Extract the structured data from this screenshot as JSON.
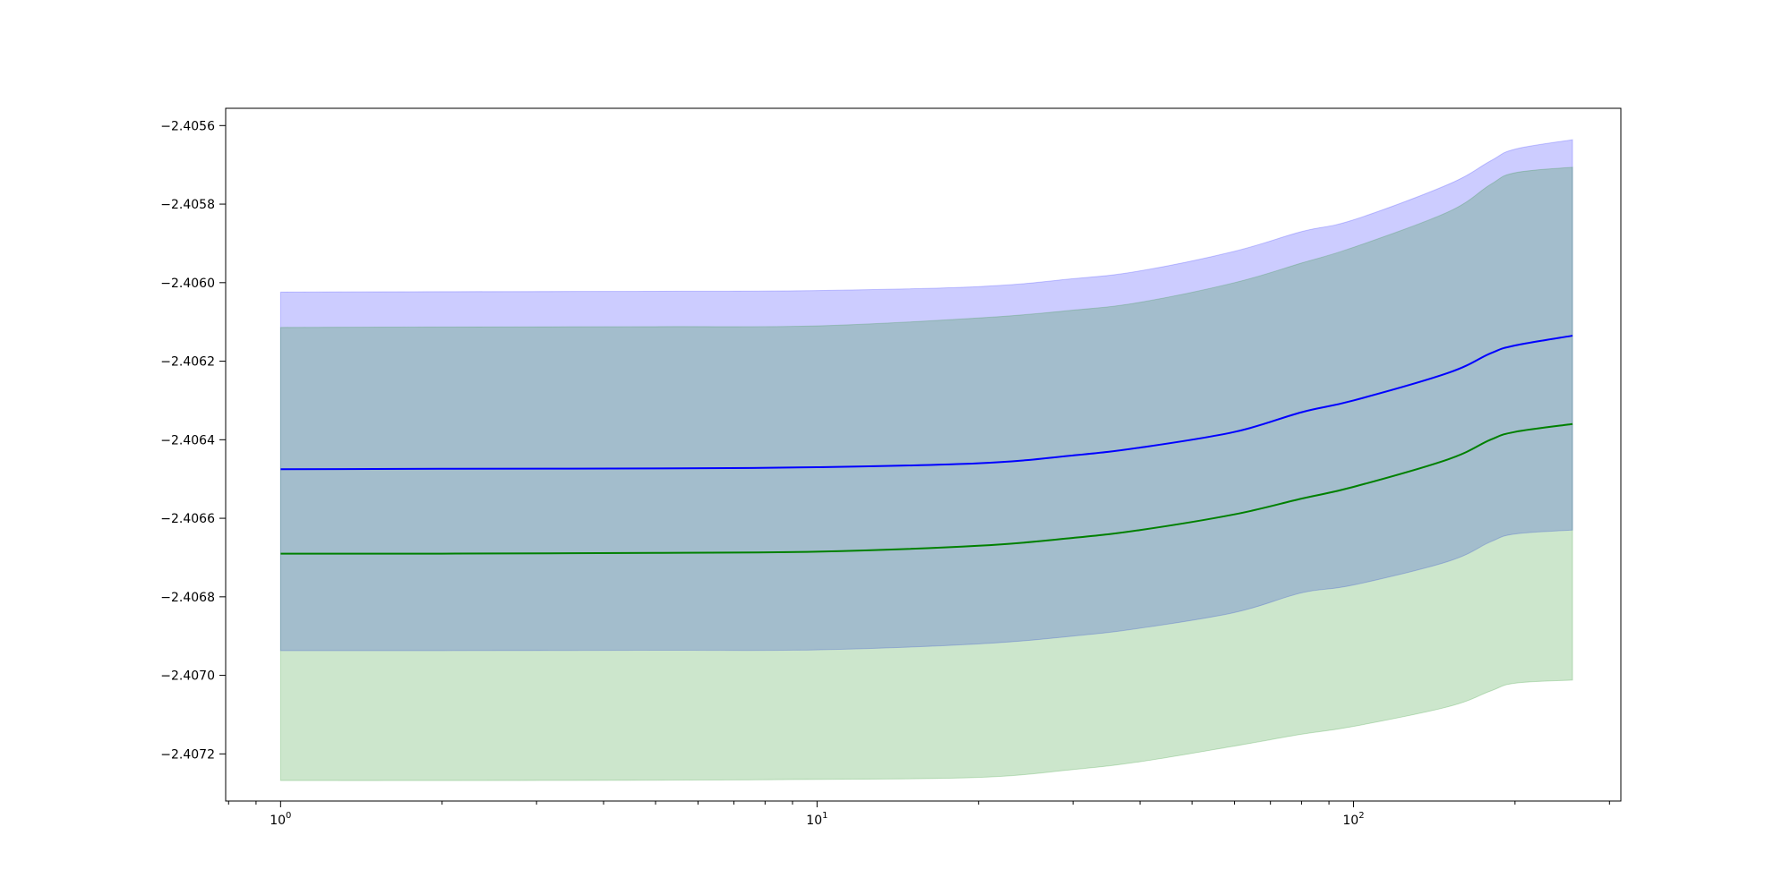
{
  "chart_data": {
    "type": "area",
    "title": "",
    "xlabel": "",
    "ylabel": "",
    "xscale": "log",
    "xlim": [
      0.79,
      315
    ],
    "ylim": [
      -2.40732,
      -2.405556
    ],
    "grid": false,
    "legend": "none",
    "x_major_ticks": [
      {
        "value": 1,
        "base": "10",
        "exp": "0"
      },
      {
        "value": 10,
        "base": "10",
        "exp": "1"
      },
      {
        "value": 100,
        "base": "10",
        "exp": "2"
      }
    ],
    "y_ticks": [
      {
        "value": -2.4056,
        "label": "−2.4056"
      },
      {
        "value": -2.4058,
        "label": "−2.4058"
      },
      {
        "value": -2.406,
        "label": "−2.4060"
      },
      {
        "value": -2.4062,
        "label": "−2.4062"
      },
      {
        "value": -2.4064,
        "label": "−2.4064"
      },
      {
        "value": -2.4066,
        "label": "−2.4066"
      },
      {
        "value": -2.4068,
        "label": "−2.4068"
      },
      {
        "value": -2.407,
        "label": "−2.4070"
      },
      {
        "value": -2.4072,
        "label": "−2.4072"
      }
    ],
    "x": [
      1,
      2,
      5,
      10,
      20,
      30,
      40,
      60,
      80,
      100,
      150,
      180,
      200,
      256
    ],
    "series": [
      {
        "color": "#0000ff",
        "fill": "#0000ff",
        "mean": [
          -2.406475,
          -2.406474,
          -2.406473,
          -2.40647,
          -2.40646,
          -2.40644,
          -2.40642,
          -2.40638,
          -2.40633,
          -2.4063,
          -2.40623,
          -2.40618,
          -2.40616,
          -2.406135
        ],
        "upper": [
          -2.406024,
          -2.406023,
          -2.406022,
          -2.40602,
          -2.40601,
          -2.40599,
          -2.40597,
          -2.40592,
          -2.40587,
          -2.40584,
          -2.40575,
          -2.40569,
          -2.40566,
          -2.405636
        ],
        "lower": [
          -2.406937,
          -2.406937,
          -2.406936,
          -2.406935,
          -2.40692,
          -2.4069,
          -2.40688,
          -2.40684,
          -2.40679,
          -2.40677,
          -2.40671,
          -2.40666,
          -2.40664,
          -2.40663
        ]
      },
      {
        "color": "#008000",
        "fill": "#008000",
        "mean": [
          -2.40669,
          -2.40669,
          -2.406688,
          -2.406685,
          -2.40667,
          -2.40665,
          -2.40663,
          -2.40659,
          -2.40655,
          -2.40652,
          -2.40645,
          -2.4064,
          -2.40638,
          -2.40636
        ],
        "upper": [
          -2.406114,
          -2.406113,
          -2.406112,
          -2.40611,
          -2.40609,
          -2.40607,
          -2.40605,
          -2.406,
          -2.40595,
          -2.40591,
          -2.40582,
          -2.40575,
          -2.40572,
          -2.405706
        ],
        "lower": [
          -2.407268,
          -2.407268,
          -2.407267,
          -2.407265,
          -2.40726,
          -2.40724,
          -2.40722,
          -2.40718,
          -2.40715,
          -2.40713,
          -2.40708,
          -2.40704,
          -2.40702,
          -2.407012
        ]
      }
    ]
  }
}
